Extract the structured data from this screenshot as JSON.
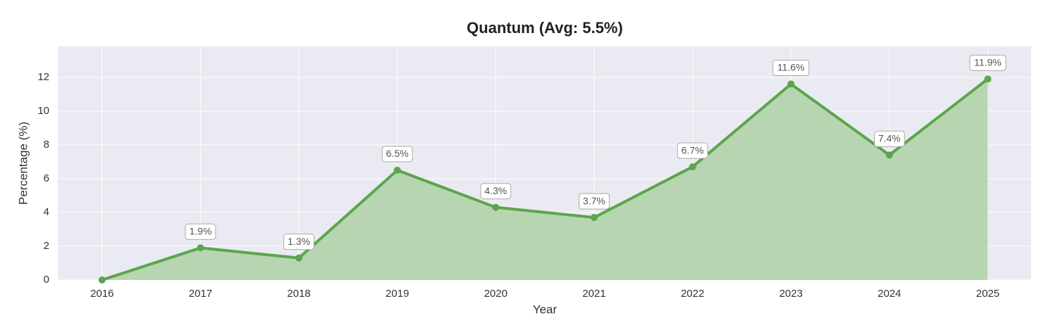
{
  "chart_data": {
    "type": "line",
    "title": "Quantum (Avg: 5.5%)",
    "x_label": "Year",
    "y_label": "Percentage (%)",
    "x": [
      2016,
      2017,
      2018,
      2019,
      2020,
      2021,
      2022,
      2023,
      2024,
      2025
    ],
    "values": [
      0,
      1.9,
      1.3,
      6.5,
      4.3,
      3.7,
      6.7,
      11.6,
      7.4,
      11.9
    ],
    "value_labels": [
      null,
      "1.9%",
      "1.3%",
      "6.5%",
      "4.3%",
      "3.7%",
      "6.7%",
      "11.6%",
      "7.4%",
      "11.9%"
    ],
    "color": "#5aa64b",
    "fill": "#b8d5b2",
    "xlim": [
      2015.55,
      2025.44
    ],
    "xticks": [
      2016,
      2017,
      2018,
      2019,
      2020,
      2021,
      2022,
      2023,
      2024,
      2025
    ],
    "ylim": [
      0,
      13.83
    ],
    "yticks": [
      0,
      2,
      4,
      6,
      8,
      10,
      12
    ],
    "grid": true
  }
}
